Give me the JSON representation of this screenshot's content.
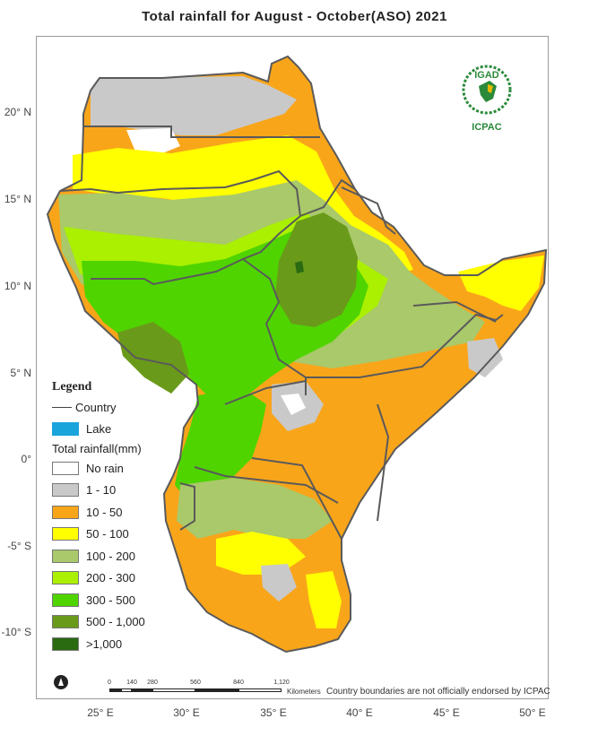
{
  "title": "Total rainfall for  August - October(ASO)  2021",
  "lat_labels": [
    "20° N",
    "15° N",
    "10° N",
    "5° N",
    "0°",
    "-5° S",
    "-10° S"
  ],
  "lon_labels": [
    "25° E",
    "30° E",
    "35° E",
    "40° E",
    "45° E",
    "50° E"
  ],
  "legend": {
    "title": "Legend",
    "country_label": "Country",
    "lake_label": "Lake",
    "lake_color": "#19a4dc",
    "rainfall_title": "Total rainfall(mm)",
    "classes": [
      {
        "label": "No rain",
        "color": "#ffffff"
      },
      {
        "label": "1 - 10",
        "color": "#c9c9c9"
      },
      {
        "label": "10 - 50",
        "color": "#f9a51a"
      },
      {
        "label": "50 - 100",
        "color": "#ffff00"
      },
      {
        "label": "100 - 200",
        "color": "#a9c96a"
      },
      {
        "label": "200 - 300",
        "color": "#aaf000"
      },
      {
        "label": "300 - 500",
        "color": "#4fd400"
      },
      {
        "label": "500 - 1,000",
        "color": "#6a9a1a"
      },
      {
        "label": ">1,000",
        "color": "#2a6a10"
      }
    ]
  },
  "logo": {
    "top_text": "IGAD",
    "bottom_text": "ICPAC",
    "color": "#2a8a3a"
  },
  "scale_bar": {
    "ticks": [
      "0",
      "140",
      "280",
      "560",
      "840",
      "1,120"
    ],
    "unit": "Kilometers"
  },
  "disclaimer": "Country boundaries are not officially endorsed by ICPAC",
  "north_arrow": "north-arrow-icon",
  "border_color": "#5a5a5a"
}
